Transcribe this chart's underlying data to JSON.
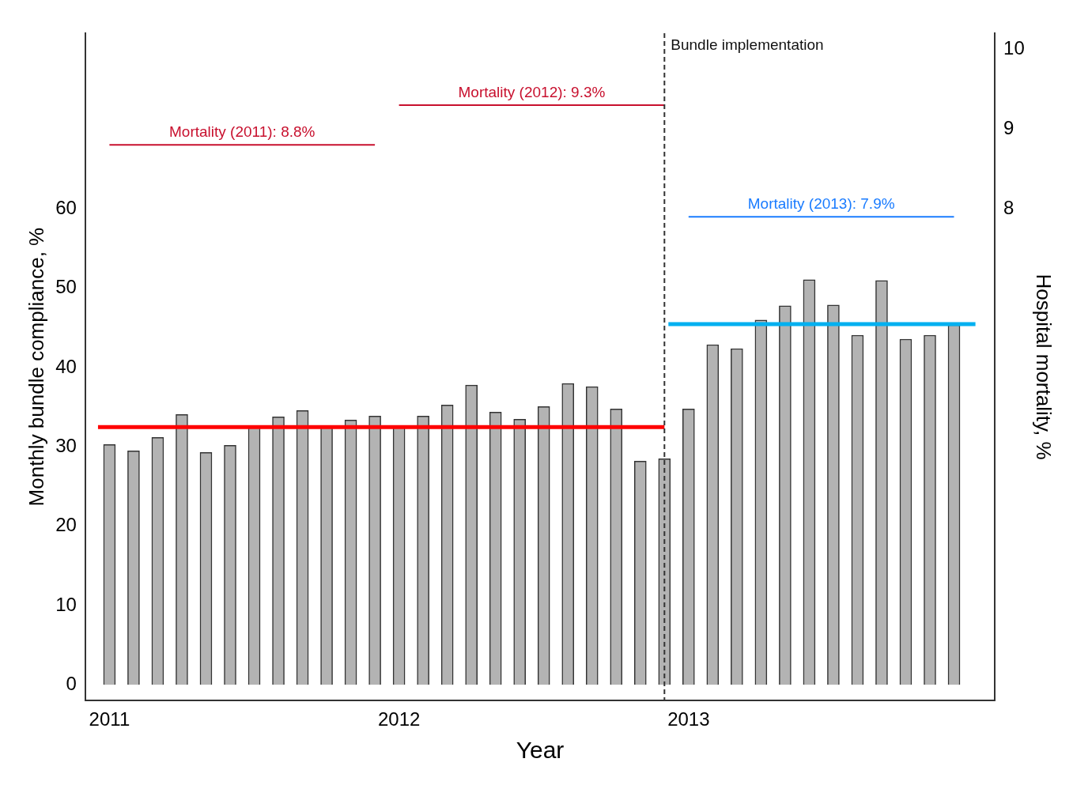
{
  "chart_data": {
    "type": "bar",
    "xlabel": "Year",
    "ylabel": "Monthly bundle compliance, %",
    "y2label": "Hospital mortality, %",
    "x": [
      "2011-01",
      "2011-02",
      "2011-03",
      "2011-04",
      "2011-05",
      "2011-06",
      "2011-07",
      "2011-08",
      "2011-09",
      "2011-10",
      "2011-11",
      "2011-12",
      "2012-01",
      "2012-02",
      "2012-03",
      "2012-04",
      "2012-05",
      "2012-06",
      "2012-07",
      "2012-08",
      "2012-09",
      "2012-10",
      "2012-11",
      "2012-12",
      "2013-01",
      "2013-02",
      "2013-03",
      "2013-04",
      "2013-05",
      "2013-06",
      "2013-07",
      "2013-08",
      "2013-09",
      "2013-10",
      "2013-11",
      "2013-12"
    ],
    "series": [
      {
        "color": "#b3b3b3",
        "values": [
          30.3,
          29.5,
          31.2,
          34.1,
          29.3,
          30.2,
          32.5,
          33.8,
          34.6,
          32.5,
          33.4,
          33.9,
          32.5,
          33.9,
          35.3,
          37.8,
          34.4,
          33.5,
          35.1,
          38.0,
          37.6,
          34.8,
          28.2,
          28.5,
          34.8,
          42.9,
          42.4,
          46.0,
          47.8,
          51.1,
          47.9,
          44.1,
          51.0,
          43.6,
          44.1,
          45.4
        ]
      },
      {
        "type": "line",
        "color": "#ff0000",
        "x": [
          "2010-12-17",
          "2012-12-01"
        ],
        "values": [
          32.5,
          32.5
        ]
      },
      {
        "type": "line",
        "color": "#00b0f0",
        "x": [
          "2012-12-06",
          "2013-12-28"
        ],
        "values": [
          45.5,
          45.5
        ]
      },
      {
        "type": "line",
        "axis": "y2",
        "name": "Mortality (2011): 8.8%",
        "color": "#c8102e",
        "x": [
          "2011-01",
          "2011-12"
        ],
        "values": [
          8.8,
          8.8
        ]
      },
      {
        "type": "line",
        "axis": "y2",
        "name": "Mortality (2012): 9.3%",
        "color": "#c8102e",
        "x": [
          "2012-01",
          "2012-12"
        ],
        "values": [
          9.3,
          9.3
        ]
      },
      {
        "type": "line",
        "axis": "y2",
        "name": "Mortality (2013): 7.9%",
        "color": "#1a7cff",
        "x": [
          "2013-01",
          "2013-12"
        ],
        "values": [
          7.9,
          7.9
        ]
      }
    ],
    "xlim": [
      "2010-12-01",
      "2014-01-22"
    ],
    "xticks": [
      "2011",
      "2012",
      "2013"
    ],
    "ylim": [
      -2,
      82.2
    ],
    "yticks": [
      0,
      10,
      20,
      30,
      40,
      50,
      60
    ],
    "y2lim": [
      1.84,
      10.2
    ],
    "y2ticks": [
      8,
      9,
      10
    ],
    "ref_lines": [
      {
        "axis": "x",
        "value": "2012-12",
        "label": "Bundle implementation",
        "color": "#333333",
        "line_style": "dashed"
      }
    ],
    "grid": false,
    "legend": false
  }
}
